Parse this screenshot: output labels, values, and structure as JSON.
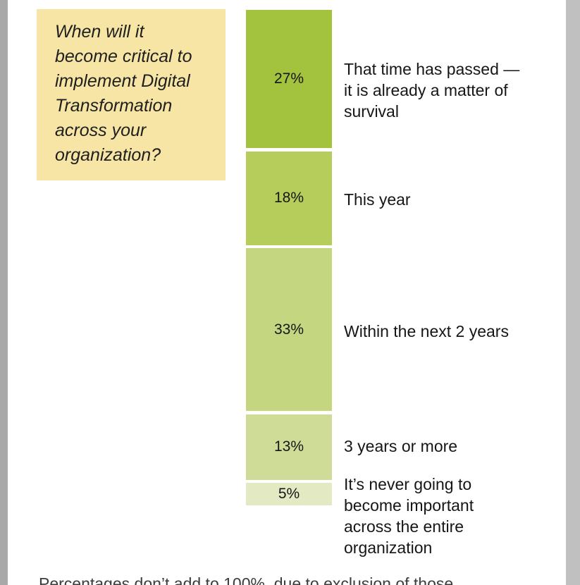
{
  "page": {
    "colors": {
      "background": "#ffffff",
      "left_edge_strip": "#a9a9a9",
      "right_edge_strip": "#c0c0c0",
      "question_box_bg": "#f6e5a4",
      "text": "#161616"
    }
  },
  "question": {
    "text": "When will it become critical to implement Digital Transformation across your organization?"
  },
  "footnote": {
    "text": "Percentages don’t add to 100%, due to exclusion of those"
  },
  "chart_data": {
    "type": "bar",
    "stacked": true,
    "orientation": "vertical",
    "title": "When will it become critical to implement Digital Transformation across your organization?",
    "unit": "%",
    "values": [
      27,
      18,
      33,
      13,
      5
    ],
    "value_labels": [
      "27%",
      "18%",
      "33%",
      "13%",
      "5%"
    ],
    "categories": [
      "That time has passed — it is already a matter of survival",
      "This year",
      "Within the next 2 years",
      "3 years or more",
      "It’s never going to become important across the entire organization"
    ],
    "category_lines": [
      [
        "That time has passed —",
        "it is already a matter of",
        "survival"
      ],
      [
        "This year"
      ],
      [
        "Within the next 2 years"
      ],
      [
        "3 years or more"
      ],
      [
        "It’s never going to",
        "become important",
        "across the entire",
        "organization"
      ]
    ],
    "colors": [
      "#a3c23d",
      "#b6cd5b",
      "#c5d681",
      "#cfdc98",
      "#e3e9c3"
    ],
    "legend": false,
    "grid": false,
    "axes_visible": false,
    "footnote": "Percentages don’t add to 100%, due to exclusion of those"
  }
}
